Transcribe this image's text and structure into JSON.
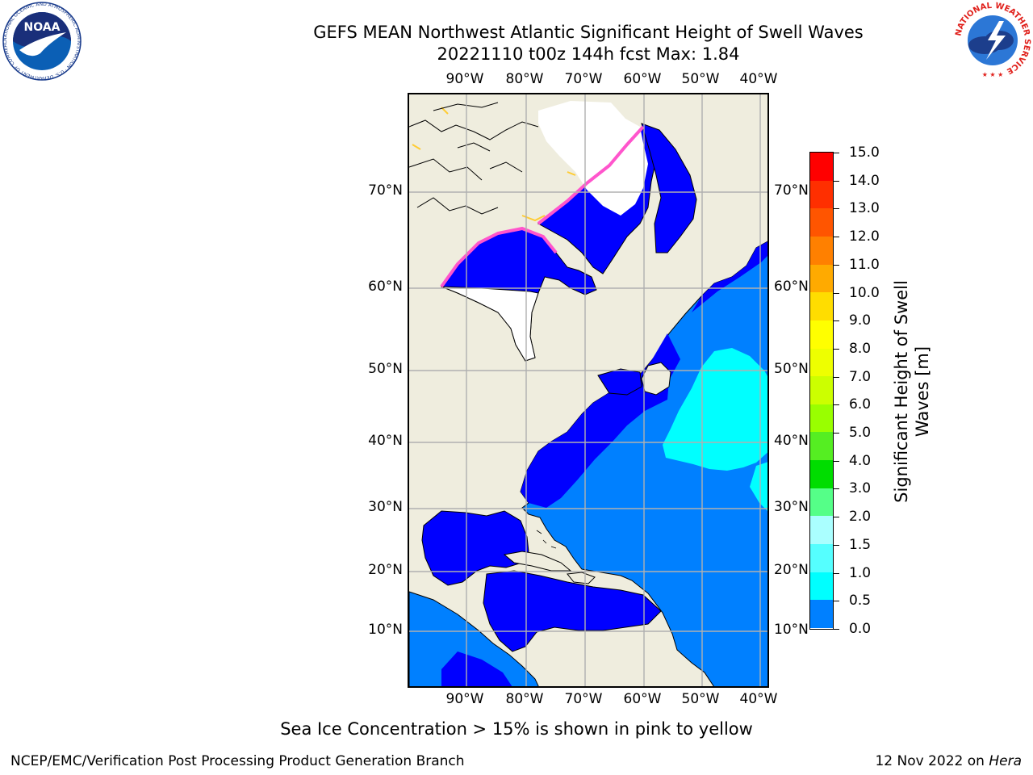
{
  "title": {
    "line1": "GEFS MEAN Northwest Atlantic Significant Height of Swell Waves",
    "line2": "20221110 t00z 144h fcst   Max: 1.84"
  },
  "map": {
    "lon_ticks": [
      "90°W",
      "80°W",
      "70°W",
      "60°W",
      "50°W",
      "40°W"
    ],
    "lat_ticks": [
      "70°N",
      "60°N",
      "50°N",
      "40°N",
      "30°N",
      "20°N",
      "10°N"
    ],
    "colors": {
      "land": "#efedde",
      "ice_area": "#ffffff",
      "ice_edge_pink": "#ff55cc",
      "ice_edge_yellow": "#ffcc33",
      "gridline": "#b0b0b0"
    }
  },
  "colorbar": {
    "title_line1": "Significant Height of Swell",
    "title_line2": "Waves [m]",
    "labels": [
      "15.0",
      "14.0",
      "13.0",
      "12.0",
      "11.0",
      "10.0",
      "9.0",
      "8.0",
      "7.0",
      "6.0",
      "5.0",
      "4.0",
      "3.0",
      "2.0",
      "1.5",
      "1.0",
      "0.5",
      "0.0"
    ],
    "colors": [
      "#ff0000",
      "#ff2f00",
      "#ff5500",
      "#ff8000",
      "#ffaa00",
      "#ffdd00",
      "#ffff00",
      "#eeff00",
      "#ccff00",
      "#99ff00",
      "#55ee22",
      "#00dd00",
      "#55ff88",
      "#aaffff",
      "#55ffff",
      "#00ffff",
      "#0080ff",
      "#0000ff"
    ]
  },
  "logos": {
    "noaa_text": "NOAA",
    "noaa_ring": "NATIONAL OCEANIC AND ATMOSPHERIC ADMINISTRATION · U.S. DEPARTMENT OF COMMERCE",
    "nws_ring": "NATIONAL WEATHER SERVICE"
  },
  "note": "Sea Ice Concentration > 15% is shown in pink to yellow",
  "footer": {
    "left": "NCEP/EMC/Verification Post Processing Product Generation Branch",
    "right_date": "12 Nov 2022 on ",
    "right_machine": "Hera"
  }
}
